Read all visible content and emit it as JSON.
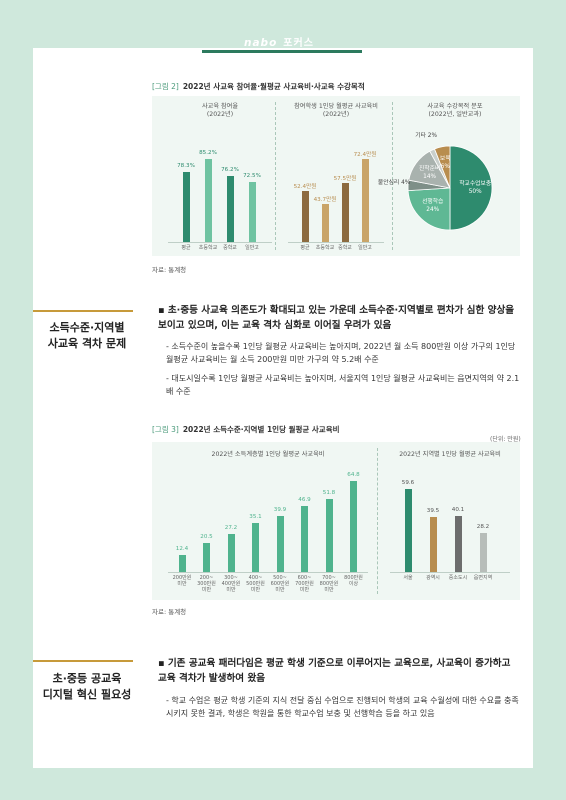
{
  "header": {
    "logo": "nabo",
    "tag": "포커스"
  },
  "figure2": {
    "label": "[그림 2]",
    "title": "2022년 사교육 참여율·월평균 사교육비·사교육 수강목적",
    "source": "자료: 통계청",
    "colors": {
      "green_dark": "#2e8b6e",
      "green_light": "#6fc3a1",
      "brown_dark": "#8c6a3f",
      "brown_light": "#c9a468"
    }
  },
  "figure3": {
    "label": "[그림 3]",
    "title": "2022년 소득수준·지역별 1인당 월평균 사교육비",
    "unit": "(단위: 만원)",
    "source": "자료: 통계청"
  },
  "section1": {
    "title_line1": "소득수준·지역별",
    "title_line2": "사교육 격차 문제",
    "bullet": "▪ 초·중등 사교육 의존도가 확대되고 있는 가운데 소득수준·지역별로 편차가 심한 양상을 보이고 있으며, 이는 교육 격차 심화로 이어질 우려가 있음",
    "dash1": "- 소득수준이 높을수록 1인당 월평균 사교육비는 높아지며, 2022년 월 소득 800만원 이상 가구의 1인당 월평균 사교육비는 월 소득 200만원 미만 가구의 약 5.2배 수준",
    "dash2": "- 대도시일수록 1인당 월평균 사교육비는 높아지며, 서울지역 1인당 월평균 사교육비는 읍면지역의 약 2.1배 수준"
  },
  "section2": {
    "title_line1": "초·중등 공교육",
    "title_line2": "디지털 혁신 필요성",
    "bullet": "▪ 기존 공교육 패러다임은 평균 학생 기준으로 이루어지는 교육으로, 사교육이 증가하고 교육 격차가 발생하여 왔음",
    "dash1": "- 학교 수업은 평균 학생 기준의 지식 전달 중심 수업으로 진행되어 학생의 교육 수월성에 대한 수요를 충족시키지 못한 결과, 학생은 학원을 통한 학교수업 보충 및 선행학습 등을 하고 있음"
  },
  "chart_data": [
    {
      "type": "bar",
      "title": "사교육 참여율 (2022년)",
      "categories": [
        "평균",
        "초등학교",
        "중학교",
        "일반고"
      ],
      "values": [
        78.3,
        85.2,
        76.2,
        72.5
      ],
      "value_labels": [
        "78.3%",
        "85.2%",
        "76.2%",
        "72.5%"
      ],
      "ylim": [
        0,
        100
      ]
    },
    {
      "type": "bar",
      "title": "참여학생 1인당 월평균 사교육비 (2022년)",
      "categories": [
        "평균",
        "초등학교",
        "중학교",
        "일반고"
      ],
      "values": [
        52.4,
        43.7,
        57.5,
        72.4
      ],
      "value_labels": [
        "52.4만원",
        "43.7만원",
        "57.5만원",
        "72.4만원"
      ],
      "ylim": [
        0,
        80
      ]
    },
    {
      "type": "pie",
      "title": "사교육 수강목적 분포 (2022년, 일반교과)",
      "slices": [
        {
          "label": "학교수업보충",
          "value": 50,
          "text": "50%",
          "color": "#2e8b6e"
        },
        {
          "label": "선행학습",
          "value": 24,
          "text": "24%",
          "color": "#5fb894"
        },
        {
          "label": "불안심리",
          "value": 4,
          "text": "4%",
          "color": "#7e8f88"
        },
        {
          "label": "진학준비",
          "value": 14,
          "text": "14%",
          "color": "#a9b2ae"
        },
        {
          "label": "기타",
          "value": 2,
          "text": "2%",
          "color": "#c9cfcc"
        },
        {
          "label": "보육",
          "value": 6,
          "text": "6%",
          "color": "#b88d4f"
        }
      ]
    },
    {
      "type": "bar",
      "title": "2022년 소득계층별 1인당 월평균 사교육비",
      "categories": [
        "200만원 미만",
        "200~300만원 미만",
        "300~400만원 미만",
        "400~500만원 미만",
        "500~600만원 미만",
        "600~700만원 미만",
        "700~800만원 미만",
        "800만원 이상"
      ],
      "values": [
        12.4,
        20.5,
        27.2,
        35.1,
        39.9,
        46.9,
        51.8,
        64.8
      ],
      "ylim": [
        0,
        70
      ]
    },
    {
      "type": "bar",
      "title": "2022년 지역별 1인당 월평균 사교육비",
      "categories": [
        "서울",
        "광역시",
        "중소도시",
        "읍면지역"
      ],
      "values": [
        59.6,
        39.5,
        40.1,
        28.2
      ],
      "ylim": [
        0,
        70
      ]
    }
  ]
}
